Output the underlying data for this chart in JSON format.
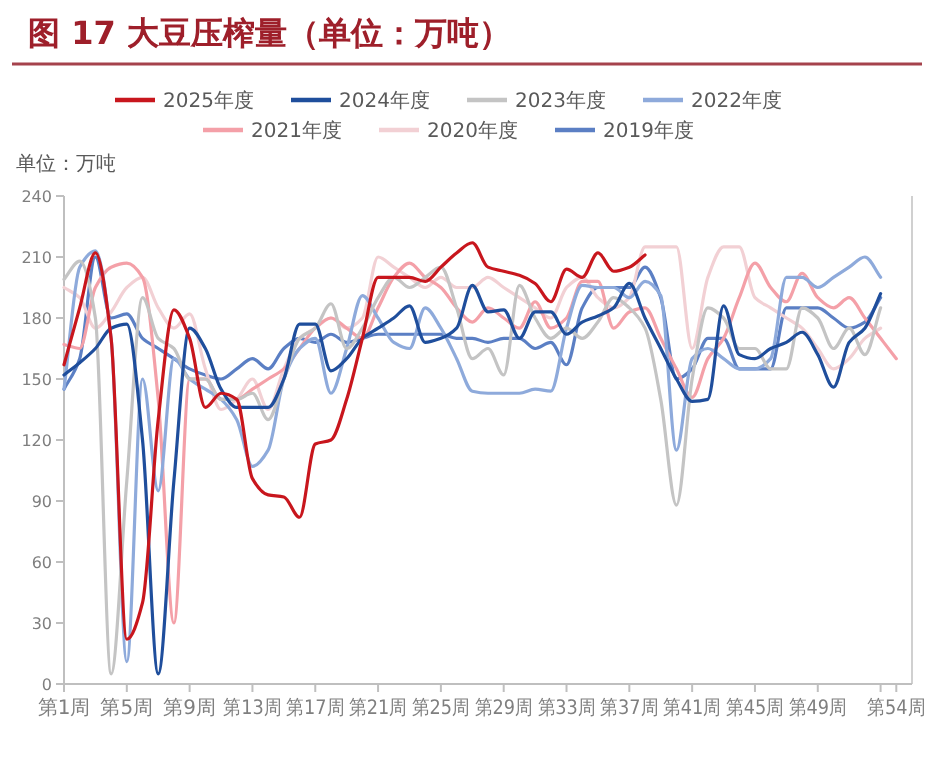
{
  "chart_data": {
    "type": "line",
    "title": "图 17 大豆压榨量（单位：万吨）",
    "ylabel": "单位：万吨",
    "categories": [
      "第1周",
      null,
      null,
      null,
      "第5周",
      null,
      null,
      null,
      "第9周",
      null,
      null,
      null,
      "第13周",
      null,
      null,
      null,
      "第17周",
      null,
      null,
      null,
      "第21周",
      null,
      null,
      null,
      "第25周",
      null,
      null,
      null,
      "第29周",
      null,
      null,
      null,
      "第33周",
      null,
      null,
      null,
      "第37周",
      null,
      null,
      null,
      "第41周",
      null,
      null,
      null,
      "第45周",
      null,
      null,
      null,
      "第49周",
      null,
      null,
      null,
      null,
      "第54周"
    ],
    "ylim": [
      0,
      240
    ],
    "yticks": [
      0,
      30,
      60,
      90,
      120,
      150,
      180,
      210,
      240
    ],
    "legend": "top",
    "grid": false,
    "marker": "none",
    "series": [
      {
        "name": "2025年度",
        "color": "#c8161d",
        "values": [
          157,
          185,
          212,
          170,
          22,
          40,
          130,
          184,
          170,
          136,
          143,
          140,
          101,
          93,
          92,
          82,
          118,
          120,
          140,
          170,
          200,
          200,
          200,
          198,
          205,
          212,
          217,
          205,
          203,
          201,
          197,
          188,
          204,
          200,
          212,
          203,
          205,
          211,
          null,
          null,
          null,
          null,
          null,
          null,
          null,
          null,
          null,
          null,
          null,
          null,
          null,
          null,
          null,
          null
        ]
      },
      {
        "name": "2024年度",
        "color": "#1f4e9c",
        "values": [
          152,
          158,
          165,
          175,
          177,
          120,
          5,
          100,
          175,
          165,
          145,
          136,
          136,
          136,
          150,
          177,
          177,
          154,
          160,
          170,
          175,
          180,
          186,
          168,
          170,
          175,
          196,
          183,
          184,
          170,
          183,
          183,
          172,
          178,
          181,
          185,
          197,
          180,
          165,
          150,
          139,
          140,
          186,
          162,
          160,
          165,
          168,
          173,
          162,
          146,
          168,
          175,
          192,
          null
        ]
      },
      {
        "name": "2023年度",
        "color": "#c4c4c4",
        "values": [
          199,
          208,
          180,
          5,
          100,
          190,
          170,
          165,
          150,
          150,
          140,
          140,
          143,
          130,
          150,
          170,
          175,
          187,
          165,
          175,
          190,
          200,
          195,
          200,
          205,
          185,
          160,
          165,
          152,
          196,
          180,
          170,
          175,
          170,
          178,
          190,
          185,
          175,
          140,
          88,
          150,
          185,
          180,
          165,
          165,
          155,
          155,
          185,
          180,
          165,
          175,
          162,
          185,
          null
        ]
      },
      {
        "name": "2022年度",
        "color": "#8eaadb",
        "values": [
          145,
          205,
          213,
          170,
          11,
          150,
          95,
          160,
          150,
          145,
          140,
          130,
          107,
          115,
          150,
          165,
          170,
          143,
          165,
          191,
          180,
          168,
          165,
          185,
          175,
          160,
          144,
          143,
          143,
          143,
          145,
          144,
          175,
          196,
          195,
          195,
          190,
          198,
          191,
          115,
          160,
          165,
          160,
          155,
          155,
          160,
          200,
          200,
          195,
          200,
          205,
          210,
          200,
          null
        ]
      },
      {
        "name": "2021年度",
        "color": "#f4a0a8",
        "values": [
          167,
          165,
          195,
          205,
          207,
          200,
          140,
          30,
          150,
          150,
          140,
          140,
          145,
          150,
          155,
          165,
          175,
          180,
          175,
          170,
          185,
          200,
          207,
          200,
          195,
          185,
          178,
          185,
          180,
          175,
          188,
          175,
          180,
          198,
          198,
          175,
          183,
          185,
          170,
          155,
          141,
          160,
          170,
          190,
          207,
          195,
          188,
          202,
          190,
          185,
          190,
          180,
          170,
          160
        ]
      },
      {
        "name": "2020年度",
        "color": "#f2d0d4",
        "values": [
          195,
          190,
          175,
          183,
          195,
          200,
          185,
          175,
          182,
          155,
          135,
          140,
          150,
          135,
          155,
          170,
          175,
          180,
          175,
          180,
          210,
          205,
          200,
          195,
          200,
          195,
          195,
          200,
          195,
          190,
          185,
          180,
          195,
          200,
          190,
          185,
          190,
          215,
          215,
          215,
          165,
          200,
          215,
          215,
          190,
          185,
          180,
          175,
          165,
          155,
          160,
          170,
          175,
          null
        ]
      },
      {
        "name": "2019年度",
        "color": "#5b7fc4",
        "values": [
          145,
          160,
          210,
          180,
          182,
          170,
          165,
          160,
          155,
          152,
          150,
          155,
          160,
          155,
          165,
          170,
          168,
          172,
          168,
          170,
          172,
          172,
          172,
          172,
          172,
          170,
          170,
          168,
          170,
          170,
          165,
          168,
          157,
          185,
          195,
          195,
          195,
          205,
          190,
          150,
          155,
          170,
          170,
          155,
          155,
          155,
          185,
          185,
          185,
          180,
          175,
          178,
          190,
          null
        ]
      }
    ]
  }
}
